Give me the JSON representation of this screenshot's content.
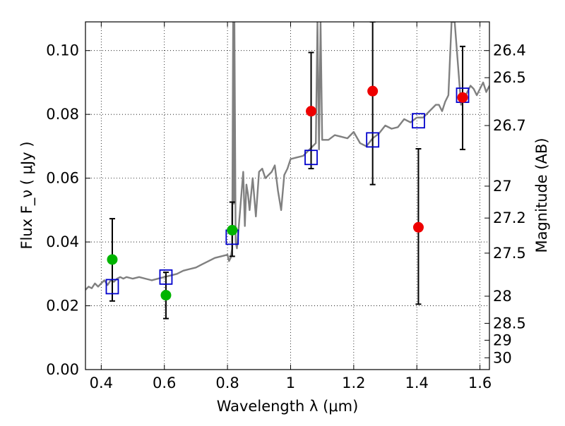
{
  "chart_data": {
    "type": "scatter",
    "title": "",
    "xlabel": "Wavelength  λ (μm)",
    "ylabel": "Flux  F_ν  ( μJy )",
    "ylabel_right": "Magnitude (AB)",
    "xlim": [
      0.35,
      1.63
    ],
    "ylim": [
      0.0,
      0.109
    ],
    "grid": true,
    "x_ticks": [
      {
        "value": 0.4,
        "label": "0.4"
      },
      {
        "value": 0.6,
        "label": "0.6"
      },
      {
        "value": 0.8,
        "label": "0.8"
      },
      {
        "value": 1.0,
        "label": "1"
      },
      {
        "value": 1.2,
        "label": "1.2"
      },
      {
        "value": 1.4,
        "label": "1.4"
      },
      {
        "value": 1.6,
        "label": "1.6"
      }
    ],
    "y_ticks": [
      {
        "value": 0.0,
        "label": "0.00"
      },
      {
        "value": 0.02,
        "label": "0.02"
      },
      {
        "value": 0.04,
        "label": "0.04"
      },
      {
        "value": 0.06,
        "label": "0.06"
      },
      {
        "value": 0.08,
        "label": "0.08"
      },
      {
        "value": 0.1,
        "label": "0.10"
      }
    ],
    "right_ticks": [
      {
        "flux": 0.1,
        "label": "26.4"
      },
      {
        "flux": 0.0915,
        "label": "26.5"
      },
      {
        "flux": 0.0765,
        "label": "26.7"
      },
      {
        "flux": 0.0575,
        "label": "27"
      },
      {
        "flux": 0.0475,
        "label": "27.2"
      },
      {
        "flux": 0.0365,
        "label": "27.5"
      },
      {
        "flux": 0.023,
        "label": "28"
      },
      {
        "flux": 0.0145,
        "label": "28.5"
      },
      {
        "flux": 0.0092,
        "label": "29"
      },
      {
        "flux": 0.0037,
        "label": "30"
      }
    ],
    "colors": {
      "template": "#808080",
      "model_photometry": "#0000cc",
      "green_points": "#00b400",
      "red_points": "#ee0000",
      "errorbars": "#000000"
    },
    "series": [
      {
        "kind": "line",
        "role": "template",
        "x": [
          0.35,
          0.36,
          0.37,
          0.38,
          0.39,
          0.4,
          0.41,
          0.42,
          0.43,
          0.44,
          0.45,
          0.46,
          0.47,
          0.48,
          0.5,
          0.52,
          0.54,
          0.56,
          0.58,
          0.6,
          0.62,
          0.64,
          0.66,
          0.68,
          0.7,
          0.72,
          0.74,
          0.76,
          0.78,
          0.8,
          0.805,
          0.81,
          0.815,
          0.818,
          0.82,
          0.822,
          0.826,
          0.83,
          0.84,
          0.85,
          0.855,
          0.86,
          0.865,
          0.87,
          0.88,
          0.89,
          0.9,
          0.91,
          0.92,
          0.93,
          0.94,
          0.95,
          0.96,
          0.97,
          0.98,
          0.99,
          1.0,
          1.02,
          1.04,
          1.06,
          1.08,
          1.085,
          1.09,
          1.095,
          1.1,
          1.12,
          1.14,
          1.16,
          1.18,
          1.2,
          1.22,
          1.24,
          1.26,
          1.28,
          1.3,
          1.32,
          1.34,
          1.36,
          1.38,
          1.4,
          1.42,
          1.44,
          1.46,
          1.47,
          1.48,
          1.49,
          1.5,
          1.51,
          1.52,
          1.54,
          1.56,
          1.57,
          1.58,
          1.59,
          1.6,
          1.61,
          1.62,
          1.63
        ],
        "y": [
          0.025,
          0.026,
          0.0255,
          0.027,
          0.026,
          0.027,
          0.028,
          0.0265,
          0.028,
          0.0275,
          0.0285,
          0.029,
          0.0285,
          0.029,
          0.0285,
          0.029,
          0.0285,
          0.028,
          0.0285,
          0.029,
          0.0295,
          0.03,
          0.031,
          0.0315,
          0.032,
          0.033,
          0.034,
          0.035,
          0.0355,
          0.036,
          0.034,
          0.035,
          0.038,
          0.109,
          0.052,
          0.109,
          0.04,
          0.038,
          0.05,
          0.062,
          0.045,
          0.058,
          0.055,
          0.05,
          0.06,
          0.048,
          0.062,
          0.063,
          0.06,
          0.061,
          0.062,
          0.064,
          0.056,
          0.05,
          0.061,
          0.063,
          0.066,
          0.0665,
          0.067,
          0.069,
          0.071,
          0.109,
          0.069,
          0.109,
          0.072,
          0.072,
          0.0735,
          0.073,
          0.0725,
          0.0745,
          0.071,
          0.07,
          0.0725,
          0.074,
          0.0765,
          0.0755,
          0.076,
          0.0785,
          0.0775,
          0.079,
          0.079,
          0.081,
          0.083,
          0.083,
          0.081,
          0.084,
          0.086,
          0.109,
          0.109,
          0.083,
          0.087,
          0.089,
          0.088,
          0.086,
          0.088,
          0.09,
          0.087,
          0.089
        ]
      },
      {
        "kind": "squares",
        "role": "model photometry",
        "x": [
          0.435,
          0.605,
          0.815,
          1.065,
          1.26,
          1.405,
          1.545
        ],
        "y": [
          0.026,
          0.029,
          0.0415,
          0.0665,
          0.072,
          0.078,
          0.086
        ]
      },
      {
        "kind": "points",
        "role": "green photometry",
        "x": [
          0.435,
          0.605,
          0.815
        ],
        "y": [
          0.0345,
          0.0233,
          0.0437
        ]
      },
      {
        "kind": "points",
        "role": "red photometry",
        "x": [
          1.065,
          1.26,
          1.405,
          1.545
        ],
        "y": [
          0.081,
          0.0873,
          0.0446,
          0.0853
        ]
      },
      {
        "kind": "errorbars",
        "role": "uncertainties",
        "x": [
          0.435,
          0.605,
          0.815,
          1.065,
          1.26,
          1.405,
          1.545
        ],
        "low": [
          0.0215,
          0.016,
          0.0355,
          0.063,
          0.058,
          0.0205,
          0.069
        ],
        "high": [
          0.0473,
          0.0305,
          0.0525,
          0.0994,
          0.109,
          0.0692,
          0.1013
        ]
      }
    ]
  }
}
